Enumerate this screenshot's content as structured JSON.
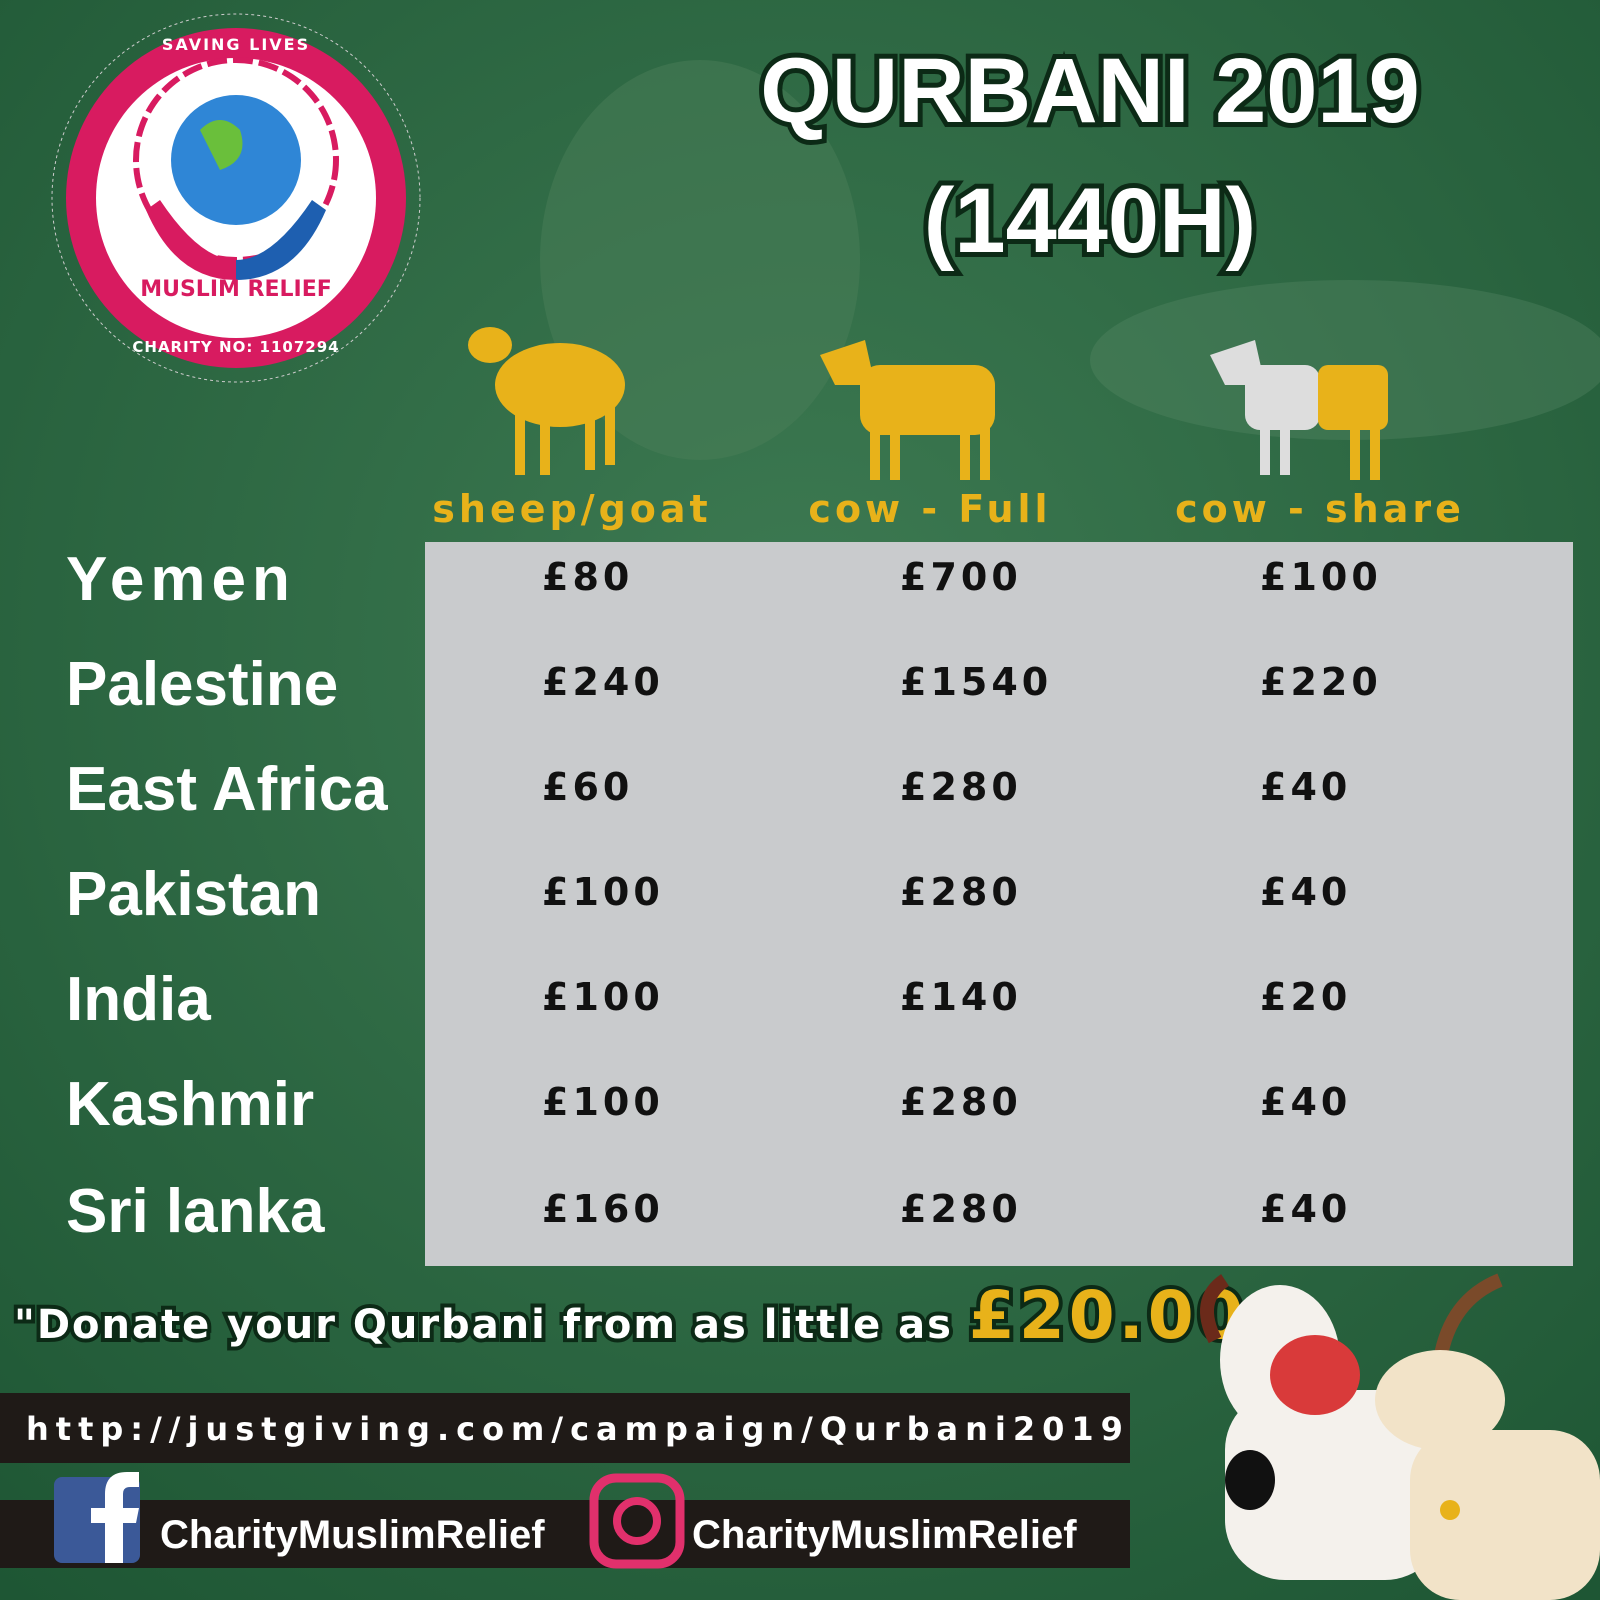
{
  "logo": {
    "top_text": "SAVING LIVES",
    "name": "MUSLIM RELIEF",
    "charity_no": "CHARITY NO: 1107294"
  },
  "header": {
    "title": "QURBANI 2019",
    "subtitle": "(1440H)"
  },
  "table": {
    "columns": [
      "sheep/goat",
      "cow - Full",
      "cow - share"
    ],
    "rows": [
      {
        "country": "Yemen",
        "prices": [
          "£80",
          "£700",
          "£100"
        ]
      },
      {
        "country": "Palestine",
        "prices": [
          "£240",
          "£1540",
          "£220"
        ]
      },
      {
        "country": "East Africa",
        "prices": [
          "£60",
          "£280",
          "£40"
        ]
      },
      {
        "country": "Pakistan",
        "prices": [
          "£100",
          "£280",
          "£40"
        ]
      },
      {
        "country": "India",
        "prices": [
          "£100",
          "£140",
          "£20"
        ]
      },
      {
        "country": "Kashmir",
        "prices": [
          "£100",
          "£280",
          "£40"
        ]
      },
      {
        "country": "Sri lanka",
        "prices": [
          "£160",
          "£280",
          "£40"
        ]
      }
    ]
  },
  "donate": {
    "text": "\"Donate your Qurbani from as little as",
    "amount": "£20.00"
  },
  "links": {
    "url": "http://justgiving.com/campaign/Qurbani2019",
    "facebook": "CharityMuslimRelief",
    "instagram": "CharityMuslimRelief"
  }
}
